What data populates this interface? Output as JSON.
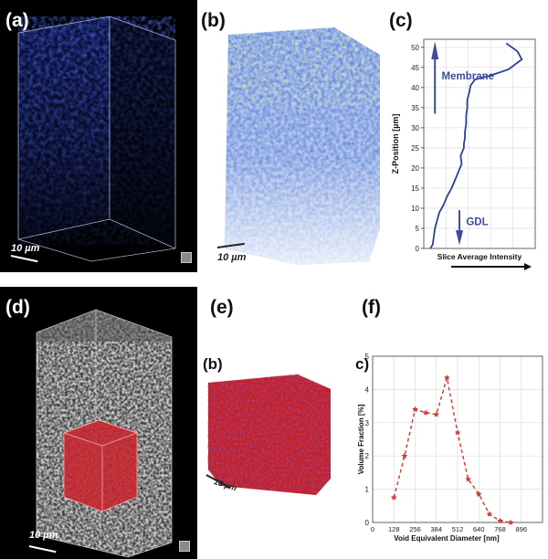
{
  "panels": {
    "a": {
      "label": "(a)",
      "scale": "10 µm"
    },
    "b": {
      "label": "(b)",
      "scale": "10 µm"
    },
    "c": {
      "label": "(c)",
      "annotation_top": "Membrane",
      "annotation_bottom": "GDL"
    },
    "d": {
      "label": "(d)",
      "scale": "10 µm"
    },
    "e": {
      "label": "(e)",
      "inner_label": "(b)",
      "scale": "10 µm"
    },
    "f": {
      "label": "(f)",
      "inner_label": "c)"
    }
  },
  "colors": {
    "profile_line": "#2c3f9a",
    "annotation": "#3a4d9e",
    "dashed_series": "#d23a2e",
    "volume_blue": "#1e3fb5",
    "volume_green": "#b7e24a",
    "cube_red": "#c81e1e"
  },
  "chart_data": [
    {
      "type": "line",
      "panel": "c",
      "title": "",
      "xlabel": "Slice Average Intensity",
      "ylabel": "Z-Position [µm]",
      "ylim": [
        0,
        52
      ],
      "yticks": [
        0,
        5,
        10,
        15,
        20,
        25,
        30,
        35,
        40,
        45,
        50
      ],
      "xlim": [
        0,
        1
      ],
      "x_ticks_labeled": false,
      "grid": true,
      "series": [
        {
          "x": [
            0.06,
            0.08,
            0.09,
            0.1,
            0.12,
            0.14,
            0.18,
            0.21,
            0.25,
            0.28,
            0.31,
            0.34,
            0.33,
            0.36,
            0.36,
            0.37,
            0.37,
            0.38,
            0.38,
            0.39,
            0.39,
            0.41,
            0.42,
            0.46,
            0.6,
            0.76,
            0.88,
            0.84,
            0.74
          ],
          "y": [
            0,
            1,
            3,
            5,
            7,
            9,
            11,
            13,
            15,
            17,
            19,
            21,
            23,
            25,
            26,
            27.5,
            29,
            31,
            33,
            35,
            37,
            39,
            40.5,
            42,
            43,
            44.5,
            47,
            49,
            51
          ]
        }
      ]
    },
    {
      "type": "line",
      "panel": "f",
      "title": "",
      "xlabel": "Void Equivalent Diameter [nm]",
      "ylabel": "Volume Fraction [%]",
      "xlim": [
        0,
        1024
      ],
      "ylim": [
        0,
        5
      ],
      "xticks": [
        0,
        128,
        256,
        384,
        512,
        640,
        768,
        896
      ],
      "yticks": [
        0,
        1,
        2,
        3,
        4,
        5
      ],
      "grid": true,
      "series": [
        {
          "style": "dashed",
          "marker": "star",
          "x": [
            128,
            192,
            256,
            320,
            384,
            448,
            512,
            576,
            640,
            704,
            768,
            832
          ],
          "y": [
            0.75,
            2.0,
            3.4,
            3.3,
            3.25,
            4.35,
            2.7,
            1.3,
            0.85,
            0.25,
            0.05,
            0.0
          ]
        }
      ]
    }
  ]
}
